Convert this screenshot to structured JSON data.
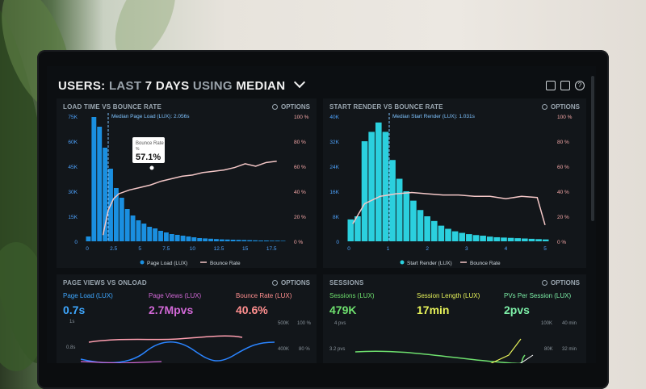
{
  "header": {
    "title_part1": "USERS:",
    "title_part2": "LAST",
    "title_part3": "7 DAYS",
    "title_part4": "USING",
    "title_part5": "MEDIAN"
  },
  "panel1": {
    "title": "LOAD TIME VS BOUNCE RATE",
    "options": "OPTIONS",
    "median_label": "Median Page Load (LUX): 2.056s",
    "tooltip_label": "Bounce Rate",
    "tooltip_prefix": "%",
    "tooltip_value": "57.1%",
    "left_ticks": [
      "75K",
      "60K",
      "45K",
      "30K",
      "15K",
      "0"
    ],
    "right_ticks": [
      "100 %",
      "80 %",
      "60 %",
      "40 %",
      "20 %",
      "0 %"
    ],
    "x_ticks": [
      "0",
      "2.5",
      "5",
      "7.5",
      "10",
      "12.5",
      "15",
      "17.5"
    ],
    "legend": [
      "Page Load (LUX)",
      "Bounce Rate"
    ],
    "bars": [
      3,
      77,
      71,
      58,
      45,
      33,
      27,
      20,
      16,
      13,
      11,
      9,
      8,
      6.5,
      5.5,
      4.5,
      4,
      3.5,
      3,
      2.5,
      2,
      1.8,
      1.6,
      1.4,
      1.2,
      1.1,
      1,
      0.9,
      0.8,
      0.7,
      0.6,
      0.5,
      0.5,
      0.4,
      0.4,
      0.3
    ],
    "line": [
      [
        1.5,
        5
      ],
      [
        2,
        25
      ],
      [
        2.5,
        34
      ],
      [
        3,
        38
      ],
      [
        4,
        41
      ],
      [
        5,
        43
      ],
      [
        6,
        45
      ],
      [
        7,
        48
      ],
      [
        8,
        50
      ],
      [
        9,
        52
      ],
      [
        10,
        53
      ],
      [
        11,
        55
      ],
      [
        12,
        56
      ],
      [
        13,
        57
      ],
      [
        14,
        59
      ],
      [
        15,
        62
      ],
      [
        16,
        60
      ],
      [
        17,
        63
      ],
      [
        18,
        64
      ]
    ],
    "colors": {
      "bar": "#1a8fe0",
      "line": "#f4c7c7"
    }
  },
  "panel2": {
    "title": "START RENDER VS BOUNCE RATE",
    "options": "OPTIONS",
    "median_label": "Median Start Render (LUX): 1.031s",
    "left_ticks": [
      "40K",
      "32K",
      "24K",
      "16K",
      "8K",
      "0"
    ],
    "right_ticks": [
      "100 %",
      "80 %",
      "60 %",
      "40 %",
      "20 %",
      "0 %"
    ],
    "x_ticks": [
      "0",
      "1",
      "2",
      "3",
      "4",
      "5"
    ],
    "legend": [
      "Start Render (LUX)",
      "Bounce Rate"
    ],
    "bars": [
      7,
      8,
      32,
      35,
      38,
      35,
      26,
      20,
      16,
      13,
      10,
      8,
      6.5,
      5,
      4,
      3.2,
      2.7,
      2.3,
      2,
      1.8,
      1.5,
      1.3,
      1.2,
      1.1,
      1,
      0.9,
      0.8,
      0.7,
      0.6
    ],
    "line": [
      [
        0.1,
        14
      ],
      [
        0.4,
        30
      ],
      [
        0.8,
        36
      ],
      [
        1.2,
        38
      ],
      [
        1.6,
        39
      ],
      [
        2,
        38
      ],
      [
        2.4,
        37
      ],
      [
        2.8,
        37
      ],
      [
        3.2,
        36
      ],
      [
        3.6,
        36
      ],
      [
        4,
        34
      ],
      [
        4.4,
        36
      ],
      [
        4.8,
        35
      ],
      [
        5,
        13
      ]
    ],
    "colors": {
      "bar": "#2bd0de",
      "line": "#f4c7c7"
    }
  },
  "panel3": {
    "title": "PAGE VIEWS VS ONLOAD",
    "options": "OPTIONS",
    "metrics": [
      {
        "label": "Page Load (LUX)",
        "value": "0.7s",
        "color": "#3ea7ff"
      },
      {
        "label": "Page Views (LUX)",
        "value": "2.7Mpvs",
        "color": "#d168d6"
      },
      {
        "label": "Bounce Rate (LUX)",
        "value": "40.6%",
        "color": "#ff8f8f"
      }
    ],
    "left_ticks": [
      "1s",
      "0.8s"
    ],
    "right_ticks_a": [
      "500K",
      "400K"
    ],
    "right_ticks_b": [
      "100 %",
      "80 %"
    ]
  },
  "panel4": {
    "title": "SESSIONS",
    "options": "OPTIONS",
    "metrics": [
      {
        "label": "Sessions (LUX)",
        "value": "479K",
        "color": "#6ee06e"
      },
      {
        "label": "Session Length (LUX)",
        "value": "17min",
        "color": "#e7f35a"
      },
      {
        "label": "PVs Per Session (LUX)",
        "value": "2pvs",
        "color": "#7df0a8"
      }
    ],
    "left_ticks": [
      "4 pvs",
      "3.2 pvs"
    ],
    "right_ticks_a": [
      "100K",
      "80K"
    ],
    "right_ticks_b": [
      "40 min",
      "32 min"
    ]
  }
}
